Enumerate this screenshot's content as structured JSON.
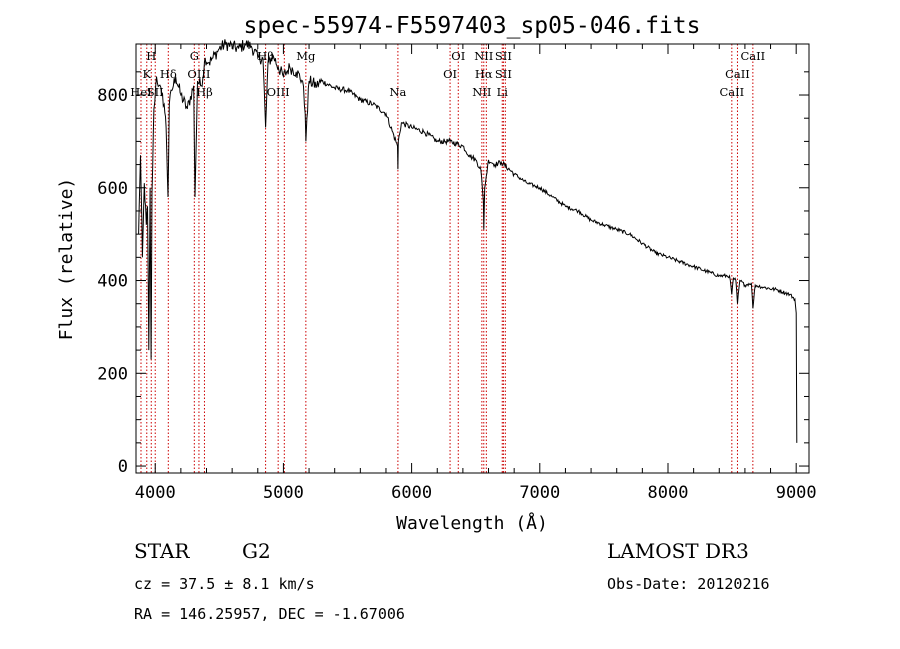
{
  "chart_data": {
    "type": "line",
    "title": "spec-55974-F5597403_sp05-046.fits",
    "xlabel": "Wavelength (Å)",
    "ylabel": "Flux (relative)",
    "xlim": [
      3850,
      9100
    ],
    "ylim": [
      -15,
      910
    ],
    "x_ticks": [
      4000,
      5000,
      6000,
      7000,
      8000,
      9000
    ],
    "y_ticks": [
      0,
      200,
      400,
      600,
      800
    ],
    "line_color": "#000000",
    "marker_color": "#cc0000",
    "series": [
      {
        "name": "spectrum",
        "x": [
          3870,
          3885,
          3900,
          3915,
          3930,
          3940,
          3950,
          3960,
          3968,
          3975,
          3990,
          4010,
          4030,
          4050,
          4070,
          4085,
          4100,
          4110,
          4130,
          4160,
          4200,
          4250,
          4300,
          4310,
          4330,
          4360,
          4390,
          4420,
          4450,
          4500,
          4550,
          4600,
          4650,
          4700,
          4750,
          4800,
          4840,
          4861,
          4880,
          4920,
          4960,
          5000,
          5050,
          5100,
          5150,
          5170,
          5175,
          5183,
          5200,
          5260,
          5300,
          5400,
          5500,
          5600,
          5700,
          5800,
          5890,
          5893,
          5896,
          5920,
          6000,
          6100,
          6200,
          6300,
          6400,
          6450,
          6500,
          6540,
          6560,
          6563,
          6570,
          6600,
          6650,
          6700,
          6800,
          6900,
          7000,
          7100,
          7200,
          7300,
          7400,
          7500,
          7600,
          7700,
          7800,
          7900,
          8000,
          8100,
          8200,
          8300,
          8400,
          8480,
          8498,
          8510,
          8530,
          8542,
          8560,
          8600,
          8650,
          8662,
          8680,
          8750,
          8850,
          8950,
          8990,
          9000,
          9005
        ],
        "values": [
          500,
          670,
          450,
          610,
          520,
          560,
          250,
          600,
          230,
          590,
          770,
          840,
          820,
          800,
          780,
          730,
          580,
          780,
          810,
          840,
          800,
          770,
          820,
          580,
          830,
          820,
          880,
          870,
          880,
          900,
          910,
          905,
          900,
          910,
          905,
          880,
          880,
          730,
          870,
          885,
          860,
          840,
          860,
          850,
          830,
          760,
          700,
          750,
          830,
          820,
          830,
          815,
          810,
          790,
          780,
          760,
          690,
          640,
          700,
          740,
          730,
          720,
          700,
          700,
          690,
          670,
          660,
          640,
          570,
          510,
          600,
          660,
          650,
          655,
          630,
          610,
          600,
          580,
          560,
          550,
          530,
          520,
          510,
          500,
          480,
          460,
          450,
          440,
          430,
          420,
          410,
          410,
          370,
          405,
          400,
          350,
          400,
          390,
          395,
          340,
          390,
          385,
          380,
          370,
          360,
          330,
          50
        ]
      }
    ],
    "lines": [
      {
        "wl": 3889,
        "labels": [
          "",
          "",
          "HeI"
        ]
      },
      {
        "wl": 3934,
        "labels": [
          "",
          "K",
          ""
        ]
      },
      {
        "wl": 3969,
        "labels": [
          "H",
          "",
          ""
        ]
      },
      {
        "wl": 4000,
        "labels": [
          "",
          "",
          "SII"
        ]
      },
      {
        "wl": 4102,
        "labels": [
          "",
          "Hδ",
          ""
        ]
      },
      {
        "wl": 4305,
        "labels": [
          "G",
          "",
          ""
        ]
      },
      {
        "wl": 4341,
        "labels": [
          "",
          "OIII",
          ""
        ]
      },
      {
        "wl": 4384,
        "labels": [
          "",
          "",
          "Hβ"
        ]
      },
      {
        "wl": 4861,
        "labels": [
          "Hβ",
          "",
          ""
        ]
      },
      {
        "wl": 4959,
        "labels": [
          "",
          "",
          "OIII"
        ]
      },
      {
        "wl": 5007,
        "labels": [
          "",
          "",
          ""
        ]
      },
      {
        "wl": 5175,
        "labels": [
          "Mg",
          "",
          ""
        ]
      },
      {
        "wl": 5893,
        "labels": [
          "",
          "",
          "Na"
        ]
      },
      {
        "wl": 6300,
        "labels": [
          "",
          "OI",
          ""
        ]
      },
      {
        "wl": 6364,
        "labels": [
          "OI",
          "",
          ""
        ]
      },
      {
        "wl": 6548,
        "labels": [
          "",
          "",
          "NII"
        ]
      },
      {
        "wl": 6563,
        "labels": [
          "NII",
          "Hα",
          ""
        ]
      },
      {
        "wl": 6583,
        "labels": [
          "",
          "",
          ""
        ]
      },
      {
        "wl": 6707,
        "labels": [
          "",
          "",
          "Li"
        ]
      },
      {
        "wl": 6716,
        "labels": [
          "SII",
          "SII",
          ""
        ]
      },
      {
        "wl": 6731,
        "labels": [
          "",
          "",
          ""
        ]
      },
      {
        "wl": 8498,
        "labels": [
          "",
          "",
          "CaII"
        ]
      },
      {
        "wl": 8542,
        "labels": [
          "",
          "CaII",
          ""
        ]
      },
      {
        "wl": 8662,
        "labels": [
          "CaII",
          "",
          ""
        ]
      }
    ]
  },
  "info": {
    "object_class": "STAR",
    "subclass": "G2",
    "survey": "LAMOST DR3",
    "cz": "cz = 37.5 ± 8.1 km/s",
    "obs_date": "Obs-Date: 20120216",
    "coords": "RA = 146.25957, DEC =  -1.67006"
  }
}
